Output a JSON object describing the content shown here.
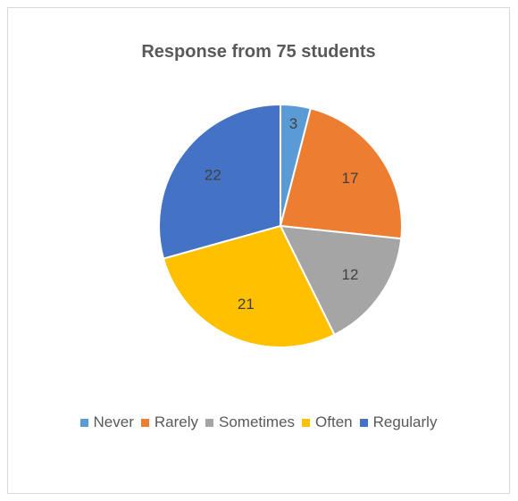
{
  "chart_data": {
    "type": "pie",
    "title": "Response from 75 students",
    "categories": [
      "Never",
      "Rarely",
      "Sometimes",
      "Often",
      "Regularly"
    ],
    "values": [
      3,
      17,
      12,
      21,
      22
    ],
    "colors": [
      "#5b9bd5",
      "#ed7d31",
      "#a5a5a5",
      "#ffc000",
      "#4472c4"
    ],
    "data_labels": [
      "3",
      "17",
      "12",
      "21",
      "22"
    ],
    "legend_position": "bottom",
    "start_angle": "12 o'clock, clockwise"
  }
}
